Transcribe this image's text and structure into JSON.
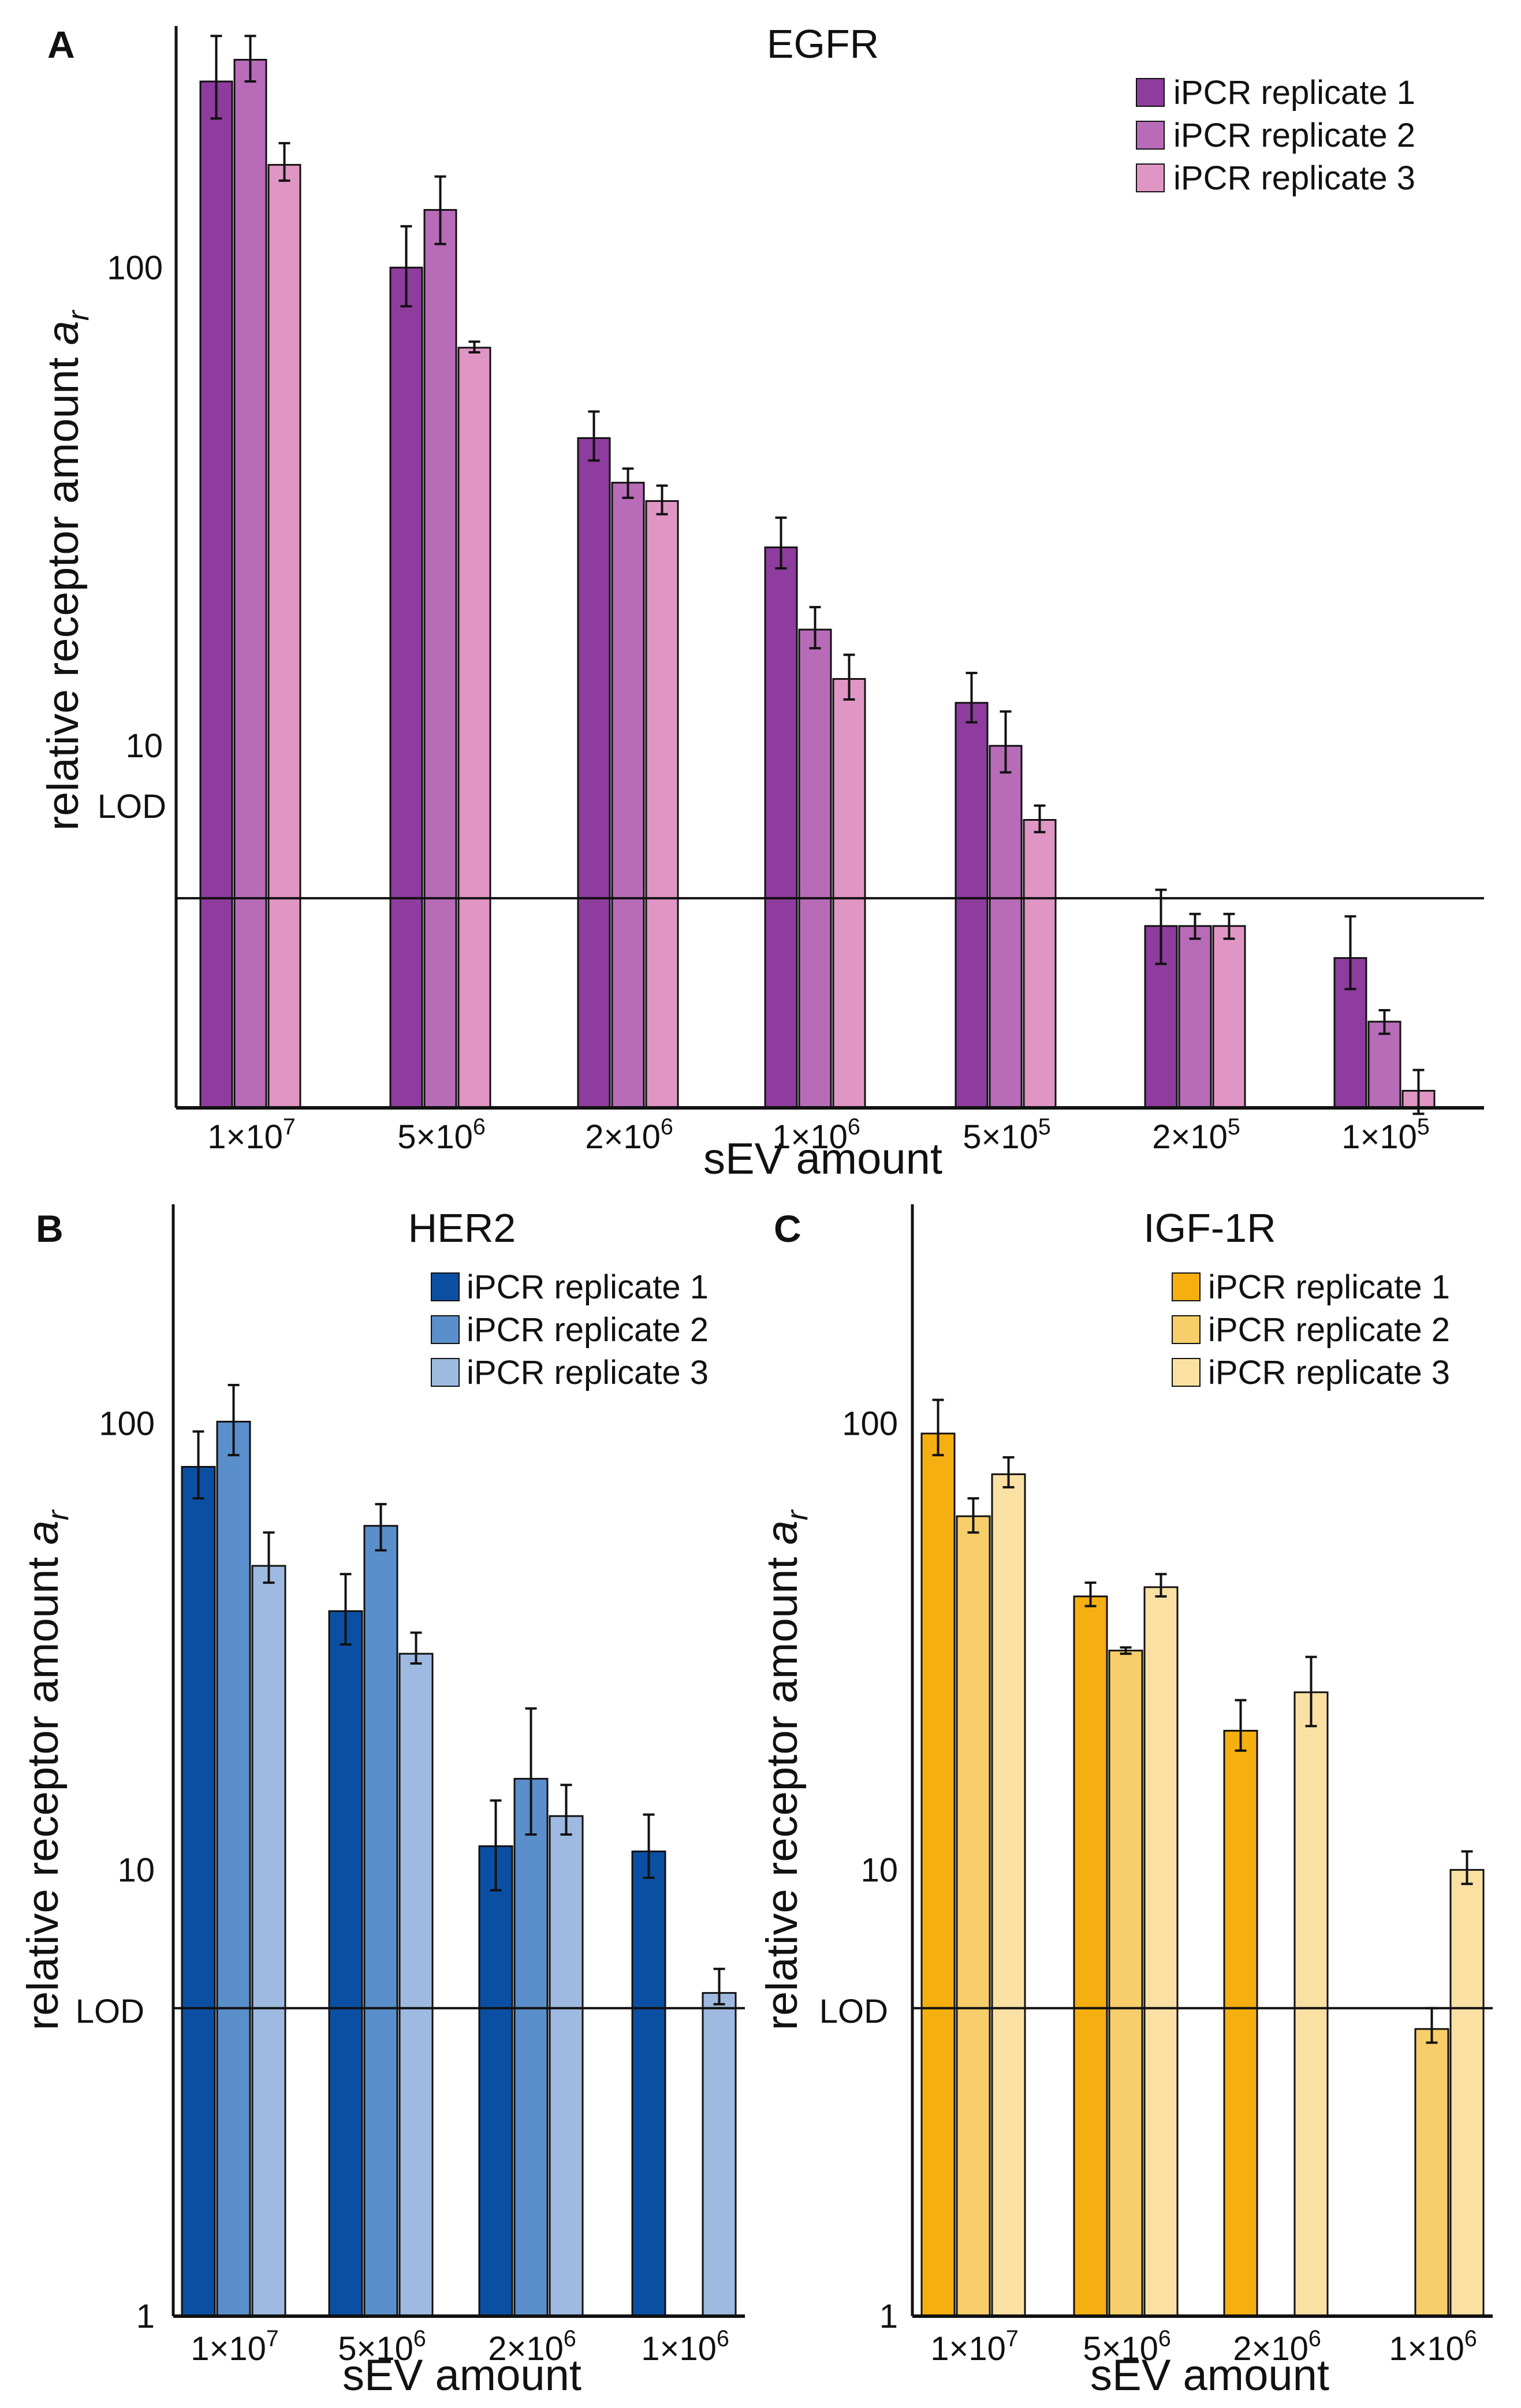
{
  "figure": {
    "lod_label": "LOD",
    "xlabel": "sEV amount",
    "ylabel_main": "relative receptor amount ",
    "ylabel_var": "a",
    "ylabel_sub": "r"
  },
  "chart_data": [
    {
      "panel": "A",
      "type": "bar",
      "scale": "log",
      "title": "EGFR",
      "ylim": [
        1.75,
        320
      ],
      "ticks": [
        10,
        100
      ],
      "lod": 4.8,
      "categories": [
        {
          "base": "1×10",
          "exp": "7"
        },
        {
          "base": "5×10",
          "exp": "6"
        },
        {
          "base": "2×10",
          "exp": "6"
        },
        {
          "base": "1×10",
          "exp": "6"
        },
        {
          "base": "5×10",
          "exp": "5"
        },
        {
          "base": "2×10",
          "exp": "5"
        },
        {
          "base": "1×10",
          "exp": "5"
        }
      ],
      "series": [
        {
          "name": "iPCR replicate 1",
          "color": "#8E3C9D",
          "values": [
            245,
            100,
            44,
            26,
            12.3,
            4.2,
            3.6
          ],
          "err_low": [
            205,
            83,
            39.5,
            23.5,
            11.2,
            3.5,
            3.1
          ],
          "err_high": [
            305,
            122,
            50,
            30,
            14.2,
            5.0,
            4.4
          ]
        },
        {
          "name": "iPCR replicate 2",
          "color": "#B86CB8",
          "values": [
            272,
            132,
            35.5,
            17.5,
            10.0,
            4.2,
            2.65
          ],
          "err_low": [
            245,
            112,
            33,
            16,
            8.8,
            3.95,
            2.5
          ],
          "err_high": [
            305,
            155,
            38,
            19.5,
            11.8,
            4.45,
            2.8
          ]
        },
        {
          "name": "iPCR replicate 3",
          "color": "#E096C4",
          "values": [
            164,
            68,
            32.5,
            13.8,
            7.0,
            4.2,
            1.9
          ],
          "err_low": [
            152,
            66.5,
            30.5,
            12.5,
            6.6,
            3.95,
            1.7
          ],
          "err_high": [
            182,
            70,
            35,
            15.5,
            7.5,
            4.45,
            2.1
          ]
        }
      ],
      "legend_position": "top-right"
    },
    {
      "panel": "B",
      "type": "bar",
      "scale": "log",
      "title": "HER2",
      "ylim": [
        1,
        310
      ],
      "ticks": [
        1,
        10,
        100
      ],
      "lod": 4.9,
      "categories": [
        {
          "base": "1×10",
          "exp": "7"
        },
        {
          "base": "5×10",
          "exp": "6"
        },
        {
          "base": "2×10",
          "exp": "6"
        },
        {
          "base": "1×10",
          "exp": "6"
        }
      ],
      "series": [
        {
          "name": "iPCR replicate 1",
          "color": "#0B4FA3",
          "values": [
            80,
            38,
            11.3,
            11.0
          ],
          "err_low": [
            68,
            32,
            9.0,
            9.6
          ],
          "err_high": [
            96,
            46,
            14.3,
            13.3
          ]
        },
        {
          "name": "iPCR replicate 2",
          "color": "#5B8FCB",
          "values": [
            101,
            59,
            16.0,
            null
          ],
          "err_low": [
            85,
            52,
            12.0,
            null
          ],
          "err_high": [
            122,
            66,
            23.0,
            null
          ]
        },
        {
          "name": "iPCR replicate 3",
          "color": "#9EBAE1",
          "values": [
            48,
            30.5,
            13.2,
            5.3
          ],
          "err_low": [
            44,
            29,
            12.0,
            5.0
          ],
          "err_high": [
            57,
            34,
            15.5,
            6.0
          ]
        }
      ],
      "legend_position": "top-right"
    },
    {
      "panel": "C",
      "type": "bar",
      "scale": "log",
      "title": "IGF-1R",
      "ylim": [
        1,
        310
      ],
      "ticks": [
        1,
        10,
        100
      ],
      "lod": 4.9,
      "categories": [
        {
          "base": "1×10",
          "exp": "7"
        },
        {
          "base": "5×10",
          "exp": "6"
        },
        {
          "base": "2×10",
          "exp": "6"
        },
        {
          "base": "1×10",
          "exp": "6"
        }
      ],
      "series": [
        {
          "name": "iPCR replicate 1",
          "color": "#F6AF10",
          "values": [
            95,
            41,
            20.5,
            null
          ],
          "err_low": [
            85,
            39,
            18.5,
            null
          ],
          "err_high": [
            113,
            44,
            24,
            null
          ]
        },
        {
          "name": "iPCR replicate 2",
          "color": "#F8CE6A",
          "values": [
            62,
            31,
            null,
            4.4
          ],
          "err_low": [
            57,
            30.5,
            null,
            4.1
          ],
          "err_high": [
            68,
            31.5,
            null,
            4.9
          ]
        },
        {
          "name": "iPCR replicate 3",
          "color": "#FBE0A4",
          "values": [
            77,
            43,
            25,
            10.0
          ],
          "err_low": [
            72,
            41,
            21,
            9.3
          ],
          "err_high": [
            84,
            46,
            30,
            11.0
          ]
        }
      ],
      "legend_position": "top-right"
    }
  ]
}
